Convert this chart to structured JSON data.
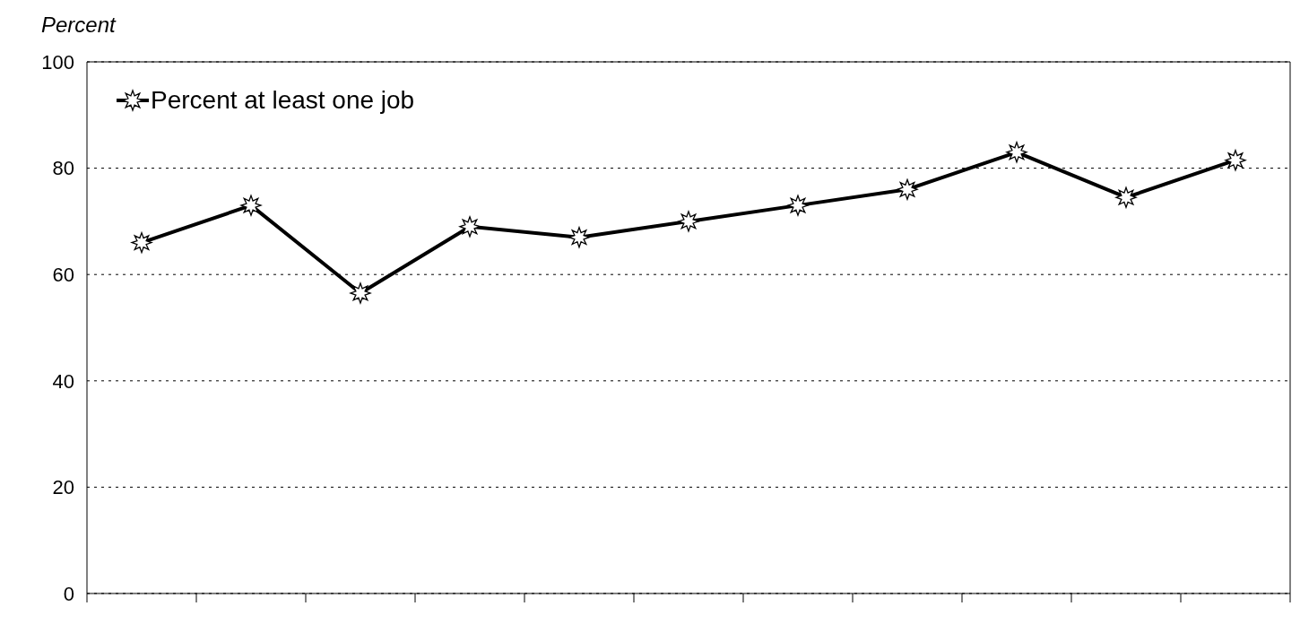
{
  "chart_data": {
    "type": "line",
    "ylabel": "Percent",
    "categories": [
      null,
      null,
      null,
      null,
      null,
      null,
      null,
      null,
      null,
      null,
      null
    ],
    "series": [
      {
        "name": "Percent at least one job",
        "color": "#000000",
        "values": [
          66,
          73,
          56.5,
          69,
          67,
          70,
          73,
          76,
          83,
          74.5,
          81.5
        ]
      }
    ],
    "ylim": [
      0,
      100
    ],
    "yticks": [
      0,
      20,
      40,
      60,
      80,
      100
    ],
    "grid": "y",
    "legend": "top left",
    "marker": "star",
    "line_style": "solid"
  }
}
